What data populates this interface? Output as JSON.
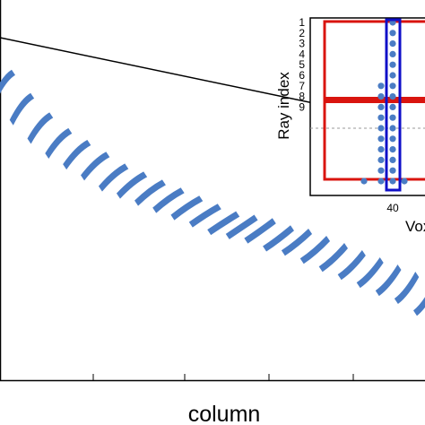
{
  "chart_data": {
    "type": "scatter",
    "description_free": true,
    "main": {
      "xlabel": "column",
      "ylabel": "",
      "title": "",
      "grid": false,
      "segments": [
        {
          "x": 0,
          "y": 0.78
        },
        {
          "x": 1,
          "y": 0.72
        },
        {
          "x": 2,
          "y": 0.67
        },
        {
          "x": 3,
          "y": 0.63
        },
        {
          "x": 4,
          "y": 0.6
        },
        {
          "x": 5,
          "y": 0.57
        },
        {
          "x": 6,
          "y": 0.54
        },
        {
          "x": 7,
          "y": 0.52
        },
        {
          "x": 8,
          "y": 0.5
        },
        {
          "x": 9,
          "y": 0.48
        },
        {
          "x": 10,
          "y": 0.46
        },
        {
          "x": 11,
          "y": 0.44
        },
        {
          "x": 12,
          "y": 0.42
        },
        {
          "x": 13,
          "y": 0.41
        },
        {
          "x": 14,
          "y": 0.4
        },
        {
          "x": 15,
          "y": 0.38
        },
        {
          "x": 16,
          "y": 0.37
        },
        {
          "x": 17,
          "y": 0.35
        },
        {
          "x": 18,
          "y": 0.33
        },
        {
          "x": 19,
          "y": 0.31
        },
        {
          "x": 20,
          "y": 0.29
        },
        {
          "x": 21,
          "y": 0.27
        },
        {
          "x": 22,
          "y": 0.25
        },
        {
          "x": 23,
          "y": 0.22
        }
      ]
    },
    "inset": {
      "ylabel": "Ray index",
      "xlabel": "Vox",
      "x_tick_labels": [
        "40"
      ],
      "y_tick_labels": [
        "1",
        "2",
        "3",
        "4",
        "5",
        "6",
        "7",
        "8",
        "9"
      ],
      "dot_columns": [
        {
          "x": 38,
          "rays": [
            7,
            8,
            9,
            10,
            11,
            12,
            13,
            14,
            15,
            16
          ]
        },
        {
          "x": 40,
          "rays": [
            1,
            2,
            3,
            4,
            5,
            6,
            7,
            8,
            9,
            10,
            11,
            12,
            13,
            14,
            15,
            16
          ]
        },
        {
          "x": 36,
          "rays": [
            16
          ]
        },
        {
          "x": 42,
          "rays": [
            16
          ]
        }
      ],
      "highlight_column_x": 40,
      "highlight_row": 7
    },
    "colors": {
      "marks": "#4a7cc4",
      "red": "#d9140f",
      "blue": "#1010c8",
      "axis": "#000000",
      "dashed": "#999999"
    }
  }
}
